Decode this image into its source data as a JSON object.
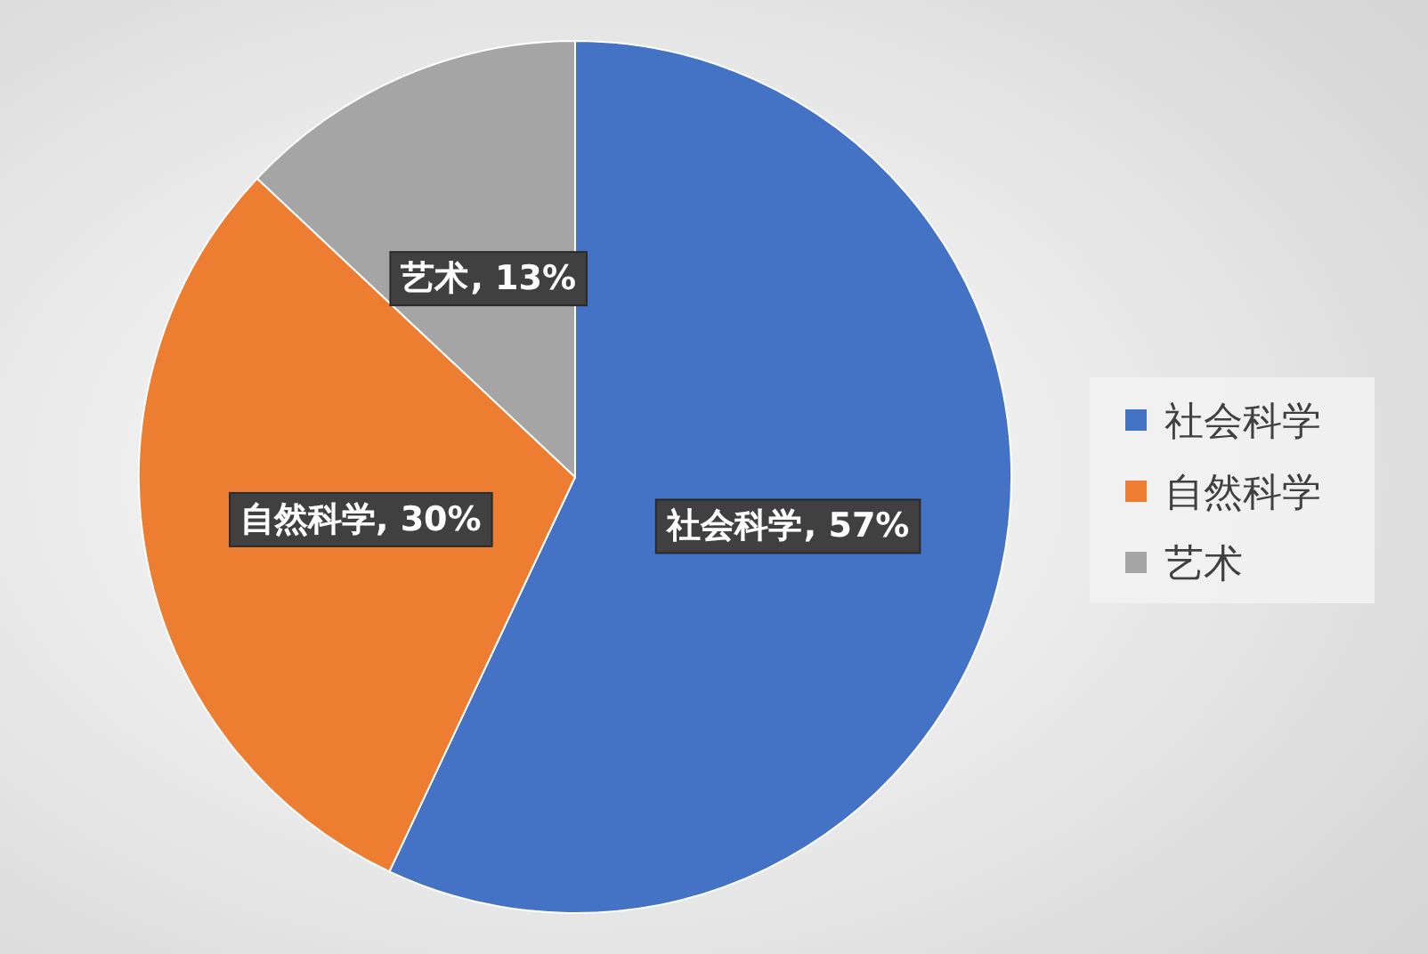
{
  "chart_data": {
    "type": "pie",
    "categories": [
      "社会科学",
      "自然科学",
      "艺术"
    ],
    "values": [
      57,
      30,
      13
    ],
    "value_labels": [
      ", 57%",
      ", 30%",
      ", 13%"
    ],
    "colors": [
      "#4472c4",
      "#ed7d31",
      "#a5a5a5"
    ],
    "legend": "right"
  }
}
